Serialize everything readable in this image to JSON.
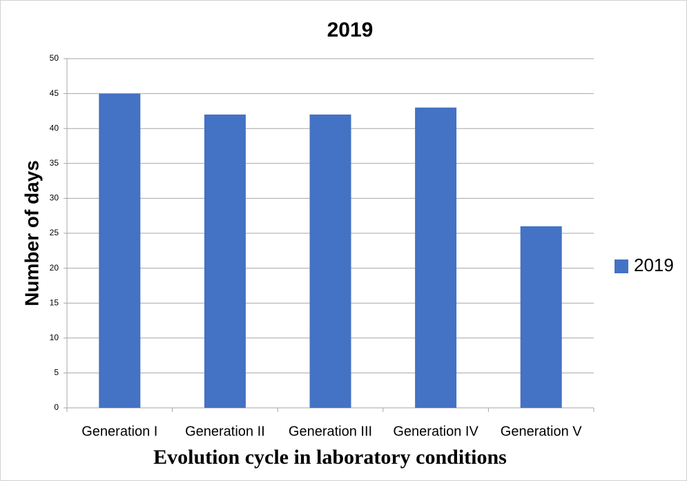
{
  "chart_data": {
    "type": "bar",
    "title": "2019",
    "y_label": "Number of days",
    "x_label": "Evolution cycle in laboratory conditions",
    "categories": [
      "Generation I",
      "Generation II",
      "Generation III",
      "Generation IV",
      "Generation V"
    ],
    "series": [
      {
        "name": "2019",
        "color": "#4472c4",
        "values": [
          45,
          42,
          42,
          43,
          26
        ]
      }
    ],
    "ylim": [
      0,
      50
    ],
    "yticks": [
      0,
      5,
      10,
      15,
      20,
      25,
      30,
      35,
      40,
      45,
      50
    ],
    "grid": true,
    "legend": "right"
  }
}
